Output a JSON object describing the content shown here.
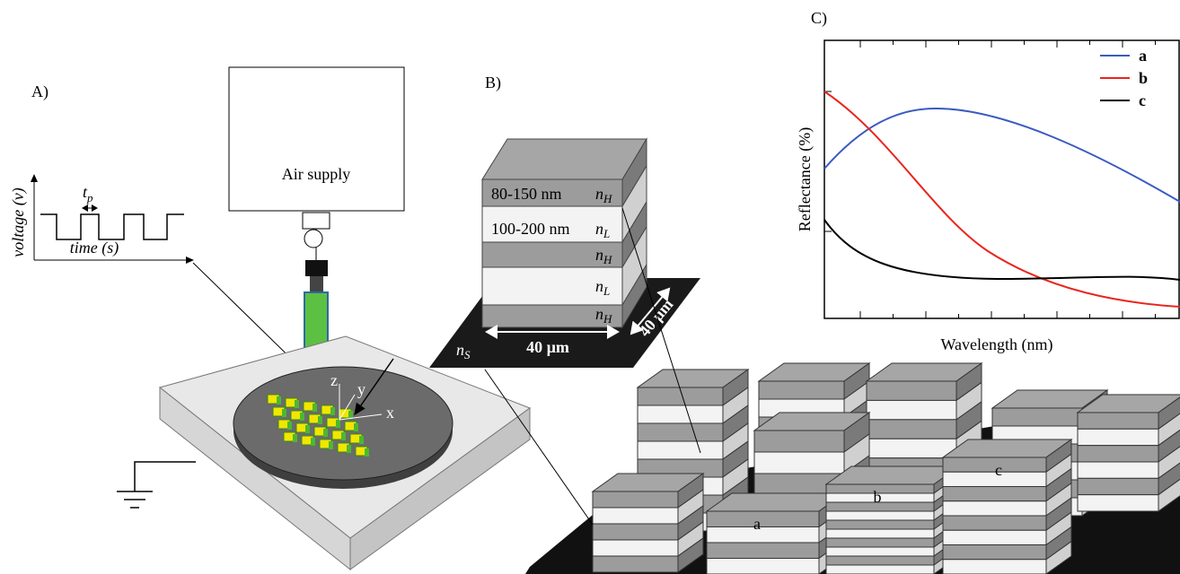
{
  "panel_a": {
    "label": "A)",
    "y_axis": "voltage (v)",
    "pulse_width": {
      "main": "t",
      "sub": "p"
    },
    "x_axis": "time (s)",
    "air_supply": "Air supply",
    "axes": [
      "z",
      "y",
      "x"
    ]
  },
  "panel_b": {
    "label": "B)",
    "layers": [
      {
        "thickness": "80-150 nm",
        "index": {
          "main": "n",
          "sub": "H"
        }
      },
      {
        "thickness": "100-200 nm",
        "index": {
          "main": "n",
          "sub": "L"
        }
      },
      {
        "index": {
          "main": "n",
          "sub": "H"
        }
      },
      {
        "index": {
          "main": "n",
          "sub": "L"
        }
      },
      {
        "index": {
          "main": "n",
          "sub": "H"
        }
      }
    ],
    "substrate": {
      "main": "n",
      "sub": "S"
    },
    "width": "40 µm",
    "depth": "40 µm"
  },
  "panel_c": {
    "label": "C)",
    "y_axis": "Reflectance (%)",
    "x_axis": "Wavelength (nm)",
    "legend": [
      "a",
      "b",
      "c"
    ]
  },
  "array_labels": [
    "a",
    "b",
    "c"
  ]
}
